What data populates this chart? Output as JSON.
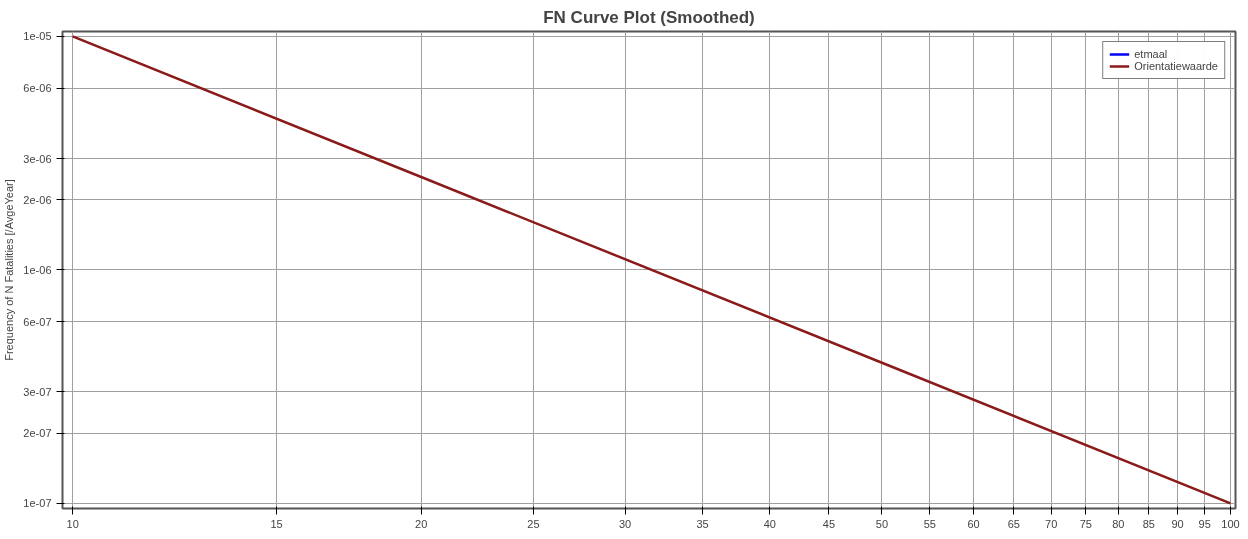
{
  "chart_data": {
    "type": "line",
    "title": "FN Curve Plot (Smoothed)",
    "ylabel": "Frequency of N Fatalities [/AvgeYear]",
    "x": [
      10,
      20,
      50,
      100
    ],
    "series": [
      {
        "name": "etmaal",
        "color": "#0000ff",
        "values": [
          null,
          null,
          null,
          null
        ]
      },
      {
        "name": "Orientatiewaarde",
        "color": "#8b1a1a",
        "values": [
          1e-05,
          2.5e-06,
          4e-07,
          1e-07
        ]
      }
    ],
    "log": "xy",
    "xlim": [
      9.8,
      101
    ],
    "ylim": [
      9.5e-08,
      1.05e-05
    ],
    "xticks": [
      10,
      15,
      20,
      25,
      30,
      35,
      40,
      45,
      50,
      55,
      60,
      65,
      70,
      75,
      80,
      85,
      90,
      95,
      100
    ],
    "yticks": [
      {
        "value": 1e-05,
        "label": "1e-05"
      },
      {
        "value": 6e-06,
        "label": "6e-06"
      },
      {
        "value": 3e-06,
        "label": "3e-06"
      },
      {
        "value": 2e-06,
        "label": "2e-06"
      },
      {
        "value": 1e-06,
        "label": "1e-06"
      },
      {
        "value": 6e-07,
        "label": "6e-07"
      },
      {
        "value": 3e-07,
        "label": "3e-07"
      },
      {
        "value": 2e-07,
        "label": "2e-07"
      },
      {
        "value": 1e-07,
        "label": "1e-07"
      }
    ],
    "grid": true,
    "legend": "top right",
    "line_style": "solid"
  }
}
